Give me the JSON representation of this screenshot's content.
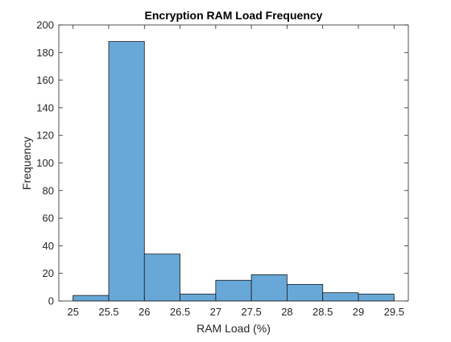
{
  "chart_data": {
    "type": "bar",
    "title": "Encryption RAM Load Frequency",
    "xlabel": "RAM Load (%)",
    "ylabel": "Frequency",
    "xlim": [
      24.8,
      29.7
    ],
    "ylim": [
      0,
      200
    ],
    "xticks": [
      "25",
      "25.5",
      "26",
      "26.5",
      "27",
      "27.5",
      "28",
      "28.5",
      "29",
      "29.5"
    ],
    "yticks": [
      "0",
      "20",
      "40",
      "60",
      "80",
      "100",
      "120",
      "140",
      "160",
      "180",
      "200"
    ],
    "bin_edges": [
      25,
      25.5,
      26,
      26.5,
      27,
      27.5,
      28,
      28.5,
      29,
      29.5
    ],
    "values": [
      4,
      188,
      34,
      5,
      15,
      19,
      12,
      6,
      5
    ],
    "grid": false,
    "bar_color": "#67a8d8",
    "edge_color": "#1a1a1a"
  }
}
